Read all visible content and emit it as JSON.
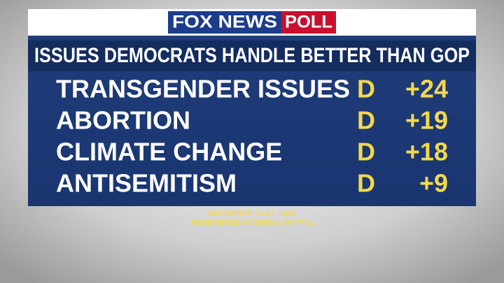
{
  "header": {
    "brand": "FOX NEWS",
    "tag": "POLL"
  },
  "title": "ISSUES DEMOCRATS HANDLE BETTER THAN GOP",
  "rows": [
    {
      "issue": "TRANSGENDER ISSUES",
      "party": "D",
      "margin": "+24"
    },
    {
      "issue": "ABORTION",
      "party": "D",
      "margin": "+19"
    },
    {
      "issue": "CLIMATE CHANGE",
      "party": "D",
      "margin": "+18"
    },
    {
      "issue": "ANTISEMITISM",
      "party": "D",
      "margin": "+9"
    }
  ],
  "footer": {
    "dates": "NOVEMBER 10-13, 2023",
    "sample": "REGISTERED VOTERS ± 4% PTS."
  }
}
